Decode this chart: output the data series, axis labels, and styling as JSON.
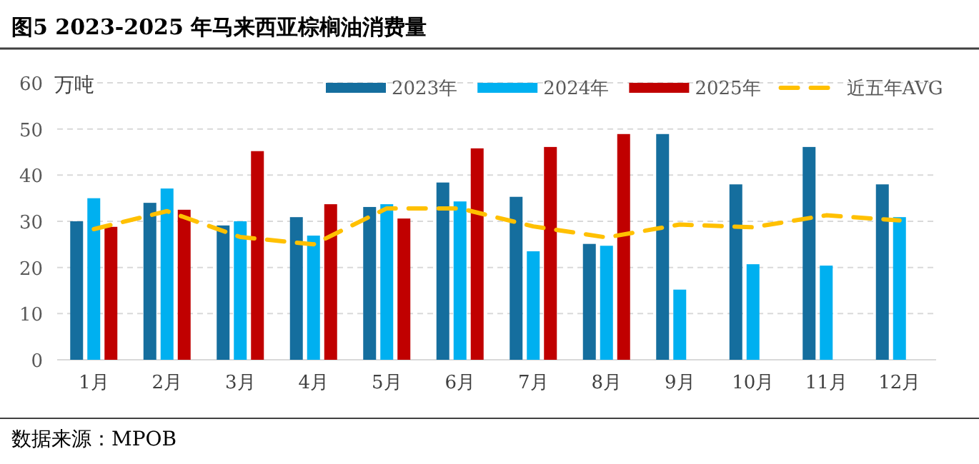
{
  "chart_data": {
    "type": "bar",
    "title": "图5 2023-2025 年马来西亚棕榈油消费量",
    "ylabel": "万吨",
    "categories": [
      "1月",
      "2月",
      "3月",
      "4月",
      "5月",
      "6月",
      "7月",
      "8月",
      "9月",
      "10月",
      "11月",
      "12月"
    ],
    "series": [
      {
        "name": "2023年",
        "color": "#156e9e",
        "values": [
          30.0,
          34.0,
          29.1,
          30.9,
          33.1,
          38.4,
          35.3,
          25.1,
          48.9,
          38.0,
          46.1,
          38.0
        ]
      },
      {
        "name": "2024年",
        "color": "#00b0f0",
        "values": [
          35.0,
          37.1,
          30.0,
          26.9,
          33.7,
          34.3,
          23.5,
          24.7,
          15.2,
          20.7,
          20.4,
          30.9
        ]
      },
      {
        "name": "2025年",
        "color": "#c00000",
        "values": [
          28.8,
          32.5,
          45.2,
          33.7,
          30.6,
          45.8,
          46.1,
          48.9,
          null,
          null,
          null,
          null
        ]
      },
      {
        "name": "近五年AVG",
        "type": "line",
        "line_style": "dashed",
        "color": "#ffc000",
        "values": [
          28.3,
          32.2,
          26.6,
          25.0,
          32.8,
          32.8,
          28.9,
          26.5,
          29.3,
          28.7,
          31.3,
          30.2
        ]
      }
    ],
    "ylim": [
      0,
      60
    ],
    "yticks": [
      0,
      10,
      20,
      30,
      40,
      50,
      60
    ],
    "grid": "y",
    "legend": "top right",
    "annotations": [
      "数据来源：MPOB"
    ]
  }
}
